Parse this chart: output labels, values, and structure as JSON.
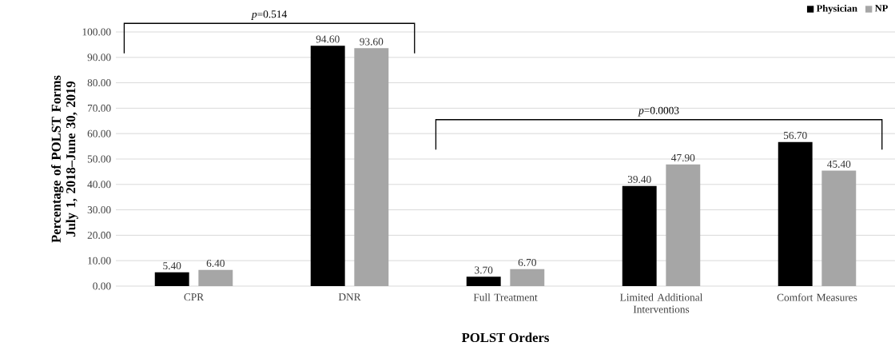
{
  "chart_data": {
    "type": "bar",
    "xlabel": "POLST Orders",
    "ylabel": "Percentage of POLST Forms July 1, 2018–June 30, 2019",
    "categories": [
      "CPR",
      "DNR",
      "Full Treatment",
      "Limited Additional Interventions",
      "Comfort Measures"
    ],
    "series": [
      {
        "name": "Physician",
        "color": "#000000",
        "values": [
          5.4,
          94.6,
          3.7,
          39.4,
          56.7
        ],
        "value_labels": [
          "5.40",
          "94.60",
          "3.70",
          "39.40",
          "56.70"
        ]
      },
      {
        "name": "NP",
        "color": "#a6a6a6",
        "values": [
          6.4,
          93.6,
          6.7,
          47.9,
          45.4
        ],
        "value_labels": [
          "6.40",
          "93.60",
          "6.70",
          "47.90",
          "45.40"
        ]
      }
    ],
    "ylim": [
      0,
      100
    ],
    "yticks": [
      {
        "value": 0,
        "label": "0.00"
      },
      {
        "value": 10,
        "label": "10.00"
      },
      {
        "value": 20,
        "label": "20.00"
      },
      {
        "value": 30,
        "label": "30.00"
      },
      {
        "value": 40,
        "label": "40.00"
      },
      {
        "value": 50,
        "label": "50.00"
      },
      {
        "value": 60,
        "label": "60.00"
      },
      {
        "value": 70,
        "label": "70.00"
      },
      {
        "value": 80,
        "label": "80.00"
      },
      {
        "value": 90,
        "label": "90.00"
      },
      {
        "value": 100,
        "label": "100.00"
      }
    ],
    "grid": "y",
    "legend": "top right",
    "annotations": [
      "*p*=0.514",
      "*p*=0.0003"
    ]
  }
}
